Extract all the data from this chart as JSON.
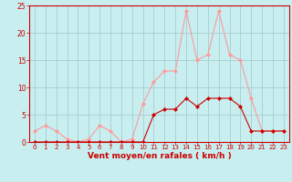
{
  "x": [
    0,
    1,
    2,
    3,
    4,
    5,
    6,
    7,
    8,
    9,
    10,
    11,
    12,
    13,
    14,
    15,
    16,
    17,
    18,
    19,
    20,
    21,
    22,
    23
  ],
  "y_mean": [
    0,
    0,
    0,
    0,
    0,
    0,
    0,
    0,
    0,
    0,
    0,
    5,
    6,
    6,
    8,
    6.5,
    8,
    8,
    8,
    6.5,
    2,
    2,
    2,
    2
  ],
  "y_gust": [
    2,
    3,
    2,
    0.5,
    0,
    0.5,
    3,
    2,
    0,
    0.5,
    7,
    11,
    13,
    13,
    24,
    15,
    16,
    24,
    16,
    15,
    8,
    2,
    2,
    2
  ],
  "bg_color": "#c8eef0",
  "grid_color": "#a0c8c8",
  "line_color_mean": "#cc0000",
  "line_color_gust": "#ff9999",
  "xlabel": "Vent moyen/en rafales ( km/h )",
  "ylim": [
    0,
    25
  ],
  "xlim": [
    -0.5,
    23.5
  ],
  "yticks": [
    0,
    5,
    10,
    15,
    20,
    25
  ],
  "xticks": [
    0,
    1,
    2,
    3,
    4,
    5,
    6,
    7,
    8,
    9,
    10,
    11,
    12,
    13,
    14,
    15,
    16,
    17,
    18,
    19,
    20,
    21,
    22,
    23
  ],
  "xlabel_fontsize": 6.5,
  "ylabel_fontsize": 5.5,
  "xtick_fontsize": 5.0,
  "ytick_fontsize": 5.5,
  "linewidth": 0.8,
  "markersize": 2.2
}
